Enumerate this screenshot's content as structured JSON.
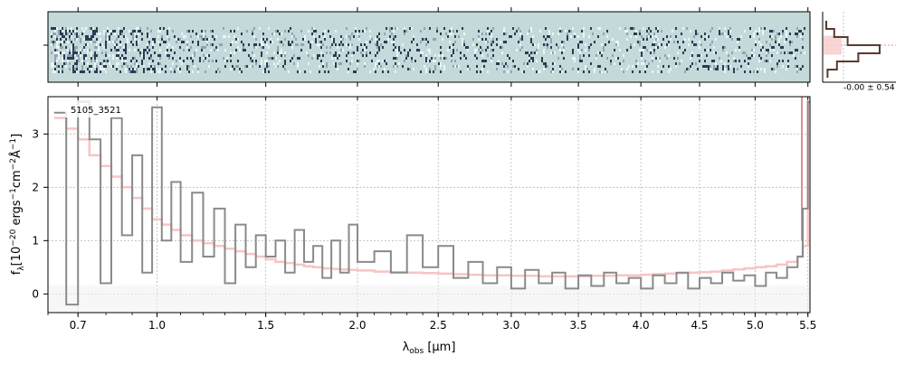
{
  "figure": {
    "object_label": "5105_3521",
    "ylabel_main": "f",
    "ylabel_sub": "λ",
    "ylabel_tail": "[10",
    "ylabel_exp": "−20",
    "ylabel_units": " ergs",
    "ylabel_units_exp1": "−1",
    "ylabel_units_mid": "cm",
    "ylabel_units_exp2": "−2",
    "ylabel_units_end": "Å",
    "ylabel_units_exp3": "−1",
    "ylabel_close": "]",
    "xlabel_lambda": "λ",
    "xlabel_sub": "obs",
    "xlabel_units": " [μm]",
    "side_annotation": "-0.00 ± 0.54"
  },
  "colors": {
    "spectrum": "#8a8a8a",
    "model": "#f8c4c4",
    "model_edge": "#d46a6a",
    "twod_bg": "#c4dada",
    "twod_dark": "#1a2a44",
    "hist": "#5a3a2e",
    "hist_fill": "#f7cfcf",
    "grid": "#b8b8b8"
  },
  "chart_data": {
    "type": "line",
    "xscale": "sqrt",
    "xlim": [
      0.6,
      5.52
    ],
    "ylim": [
      -0.35,
      3.7
    ],
    "grid": true,
    "xticks": [
      0.7,
      1.0,
      1.5,
      2.0,
      2.5,
      3.0,
      3.5,
      4.0,
      4.5,
      5.0,
      5.5
    ],
    "xtick_labels": [
      "0.7",
      "1.0",
      "1.5",
      "2.0",
      "2.5",
      "3.0",
      "3.5",
      "4.0",
      "4.5",
      "5.0",
      "5.5"
    ],
    "yticks": [
      0,
      1,
      2,
      3
    ],
    "ytick_labels": [
      "0",
      "1",
      "2",
      "3"
    ],
    "series": [
      {
        "role": "spectrum",
        "style": "steps",
        "x": [
          0.62,
          0.66,
          0.7,
          0.74,
          0.78,
          0.82,
          0.86,
          0.9,
          0.94,
          0.98,
          1.02,
          1.06,
          1.1,
          1.15,
          1.2,
          1.25,
          1.3,
          1.35,
          1.4,
          1.45,
          1.5,
          1.55,
          1.6,
          1.65,
          1.7,
          1.75,
          1.8,
          1.85,
          1.9,
          1.95,
          2.0,
          2.1,
          2.2,
          2.3,
          2.4,
          2.5,
          2.6,
          2.7,
          2.8,
          2.9,
          3.0,
          3.1,
          3.2,
          3.3,
          3.4,
          3.5,
          3.6,
          3.7,
          3.8,
          3.9,
          4.0,
          4.1,
          4.2,
          4.3,
          4.4,
          4.5,
          4.6,
          4.7,
          4.8,
          4.9,
          5.0,
          5.1,
          5.2,
          5.3,
          5.4,
          5.45,
          5.5
        ],
        "y": [
          3.4,
          -0.2,
          3.6,
          2.9,
          0.2,
          3.3,
          1.1,
          2.6,
          0.4,
          3.5,
          1.0,
          2.1,
          0.6,
          1.9,
          0.7,
          1.6,
          0.2,
          1.3,
          0.5,
          1.1,
          0.7,
          1.0,
          0.4,
          1.2,
          0.6,
          0.9,
          0.3,
          1.0,
          0.4,
          1.3,
          0.6,
          0.8,
          0.4,
          1.1,
          0.5,
          0.9,
          0.3,
          0.6,
          0.2,
          0.5,
          0.1,
          0.45,
          0.2,
          0.4,
          0.1,
          0.35,
          0.15,
          0.4,
          0.2,
          0.3,
          0.1,
          0.35,
          0.2,
          0.4,
          0.1,
          0.3,
          0.2,
          0.4,
          0.25,
          0.35,
          0.15,
          0.4,
          0.3,
          0.5,
          0.7,
          1.6,
          3.6
        ]
      },
      {
        "role": "model",
        "style": "steps",
        "x": [
          0.62,
          0.66,
          0.7,
          0.74,
          0.78,
          0.82,
          0.86,
          0.9,
          0.94,
          0.98,
          1.02,
          1.06,
          1.1,
          1.15,
          1.2,
          1.25,
          1.3,
          1.35,
          1.4,
          1.45,
          1.5,
          1.55,
          1.6,
          1.65,
          1.7,
          1.75,
          1.8,
          1.85,
          1.9,
          1.95,
          2.0,
          2.1,
          2.2,
          2.3,
          2.4,
          2.5,
          2.6,
          2.7,
          2.8,
          2.9,
          3.0,
          3.1,
          3.2,
          3.3,
          3.4,
          3.5,
          3.6,
          3.7,
          3.8,
          3.9,
          4.0,
          4.1,
          4.2,
          4.3,
          4.4,
          4.5,
          4.6,
          4.7,
          4.8,
          4.9,
          5.0,
          5.1,
          5.2,
          5.3,
          5.4,
          5.45,
          5.5
        ],
        "y": [
          3.3,
          3.1,
          2.9,
          2.6,
          2.4,
          2.2,
          2.0,
          1.8,
          1.6,
          1.4,
          1.3,
          1.2,
          1.1,
          1.0,
          0.95,
          0.9,
          0.85,
          0.8,
          0.75,
          0.7,
          0.65,
          0.6,
          0.58,
          0.55,
          0.52,
          0.5,
          0.48,
          0.47,
          0.46,
          0.45,
          0.44,
          0.42,
          0.41,
          0.4,
          0.39,
          0.38,
          0.37,
          0.36,
          0.35,
          0.35,
          0.34,
          0.34,
          0.33,
          0.33,
          0.33,
          0.33,
          0.34,
          0.34,
          0.35,
          0.35,
          0.36,
          0.37,
          0.38,
          0.39,
          0.4,
          0.41,
          0.42,
          0.44,
          0.46,
          0.48,
          0.5,
          0.52,
          0.55,
          0.6,
          0.7,
          0.9,
          3.6
        ]
      }
    ],
    "histogram": {
      "bins": [
        -0.9,
        -0.6,
        -0.3,
        0.0,
        0.3,
        0.6,
        0.9
      ],
      "counts": [
        2,
        8,
        18,
        42,
        26,
        10,
        3
      ]
    }
  }
}
